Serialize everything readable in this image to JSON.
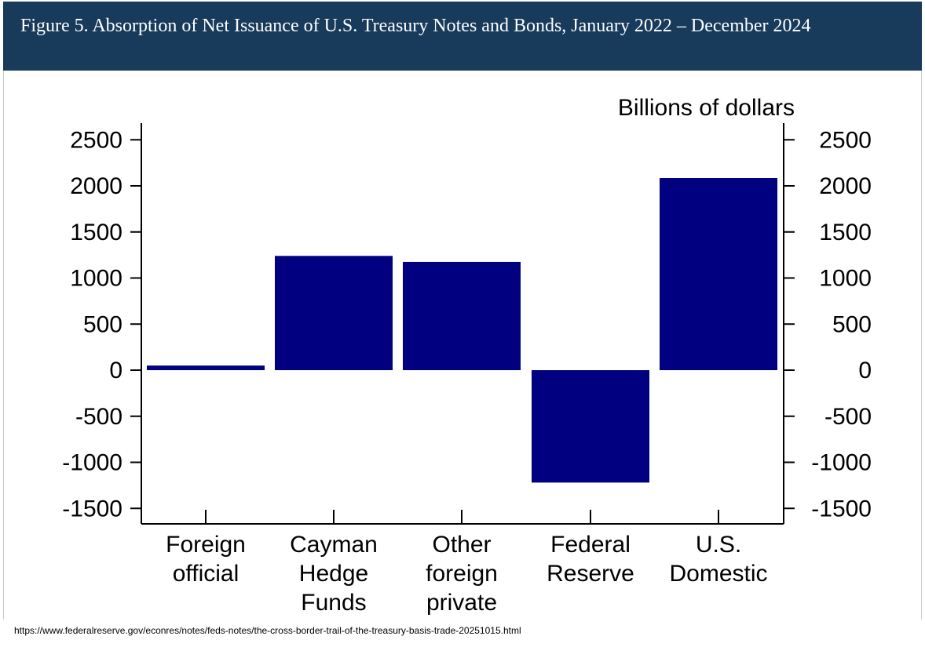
{
  "header": {
    "title": "Figure 5. Absorption of Net Issuance of U.S. Treasury Notes and Bonds, January 2022 – December 2024"
  },
  "chart_data": {
    "type": "bar",
    "title": "Figure 5. Absorption of Net Issuance of U.S. Treasury Notes and Bonds, January 2022 – December 2024",
    "unit_label": "Billions of dollars",
    "categories": [
      [
        "Foreign",
        "official"
      ],
      [
        "Cayman",
        "Hedge",
        "Funds"
      ],
      [
        "Other",
        "foreign",
        "private"
      ],
      [
        "Federal",
        "Reserve"
      ],
      [
        "U.S.",
        "Domestic"
      ]
    ],
    "values": [
      50,
      1240,
      1175,
      -1220,
      2085
    ],
    "ylim": [
      -1700,
      2650
    ],
    "yticks": [
      -1500,
      -1000,
      -500,
      0,
      500,
      1000,
      1500,
      2000,
      2500
    ],
    "color": "#000080",
    "grid": false,
    "xlabel": "",
    "ylabel": ""
  },
  "footer": {
    "source_url": "https://www.federalreserve.gov/econres/notes/feds-notes/the-cross-border-trail-of-the-treasury-basis-trade-20251015.html"
  }
}
